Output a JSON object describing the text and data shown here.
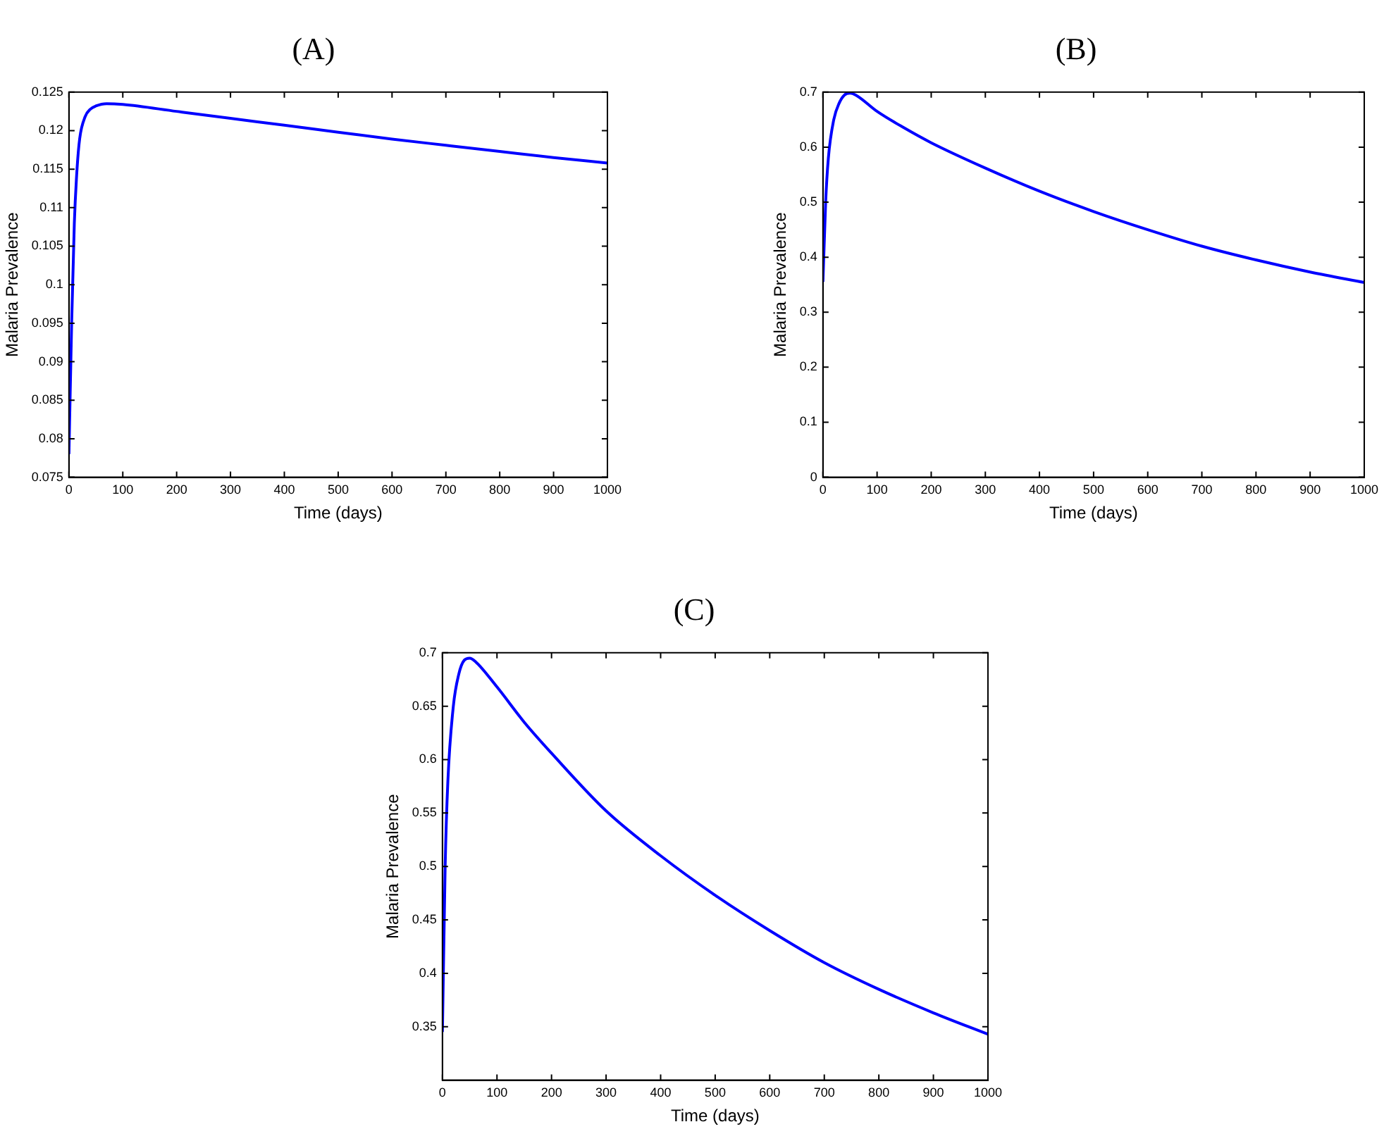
{
  "chart_data": [
    {
      "type": "line",
      "title": "(A)",
      "xlabel": "Time (days)",
      "ylabel": "Malaria Prevalence",
      "xlim": [
        0,
        1000
      ],
      "xticks": [
        0,
        100,
        200,
        300,
        400,
        500,
        600,
        700,
        800,
        900,
        1000
      ],
      "ylim": [
        0.075,
        0.125
      ],
      "yticks": [
        0.075,
        0.08,
        0.085,
        0.09,
        0.095,
        0.1,
        0.105,
        0.11,
        0.115,
        0.12,
        0.125
      ],
      "grid": false,
      "legend": false,
      "x": [
        0,
        5,
        10,
        15,
        20,
        30,
        40,
        50,
        70,
        100,
        200,
        300,
        400,
        500,
        600,
        700,
        800,
        900,
        1000
      ],
      "series": [
        {
          "color": "#0000ff",
          "values": [
            0.078,
            0.095,
            0.108,
            0.115,
            0.119,
            0.1218,
            0.1228,
            0.1232,
            0.1235,
            0.1234,
            0.1225,
            0.1216,
            0.1207,
            0.1198,
            0.1189,
            0.1181,
            0.1173,
            0.1165,
            0.1158
          ]
        }
      ]
    },
    {
      "type": "line",
      "title": "(B)",
      "xlabel": "Time (days)",
      "ylabel": "Malaria Prevalence",
      "xlim": [
        0,
        1000
      ],
      "xticks": [
        0,
        100,
        200,
        300,
        400,
        500,
        600,
        700,
        800,
        900,
        1000
      ],
      "ylim": [
        0,
        0.7
      ],
      "yticks": [
        0,
        0.1,
        0.2,
        0.3,
        0.4,
        0.5,
        0.6,
        0.7
      ],
      "grid": false,
      "legend": false,
      "x": [
        0,
        5,
        10,
        20,
        30,
        40,
        50,
        60,
        100,
        150,
        200,
        300,
        400,
        500,
        600,
        700,
        800,
        900,
        1000
      ],
      "series": [
        {
          "color": "#0000ff",
          "values": [
            0.355,
            0.5,
            0.58,
            0.65,
            0.68,
            0.695,
            0.698,
            0.695,
            0.665,
            0.635,
            0.608,
            0.562,
            0.52,
            0.483,
            0.45,
            0.42,
            0.395,
            0.373,
            0.354
          ]
        }
      ]
    },
    {
      "type": "line",
      "title": "(C)",
      "xlabel": "Time (days)",
      "ylabel": "Malaria Prevalence",
      "xlim": [
        0,
        1000
      ],
      "xticks": [
        0,
        100,
        200,
        300,
        400,
        500,
        600,
        700,
        800,
        900,
        1000
      ],
      "ylim": [
        0.3,
        0.7
      ],
      "yticks": [
        0.35,
        0.4,
        0.45,
        0.5,
        0.55,
        0.6,
        0.65,
        0.7
      ],
      "grid": false,
      "legend": false,
      "x": [
        0,
        5,
        10,
        20,
        30,
        40,
        50,
        60,
        100,
        150,
        200,
        300,
        400,
        500,
        600,
        700,
        800,
        900,
        1000
      ],
      "series": [
        {
          "color": "#0000ff",
          "values": [
            0.345,
            0.5,
            0.58,
            0.65,
            0.68,
            0.693,
            0.695,
            0.692,
            0.668,
            0.635,
            0.606,
            0.552,
            0.51,
            0.473,
            0.44,
            0.41,
            0.385,
            0.363,
            0.343
          ]
        }
      ]
    }
  ]
}
